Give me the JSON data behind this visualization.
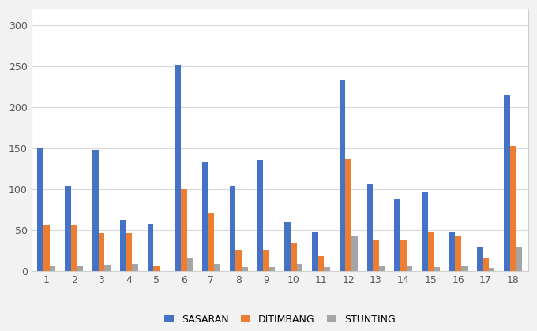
{
  "categories": [
    1,
    2,
    3,
    4,
    5,
    6,
    7,
    8,
    9,
    10,
    11,
    12,
    13,
    14,
    15,
    16,
    17,
    18
  ],
  "sasaran": [
    150,
    104,
    148,
    63,
    58,
    251,
    134,
    104,
    136,
    60,
    48,
    233,
    106,
    88,
    96,
    48,
    30,
    215
  ],
  "ditimbang": [
    57,
    57,
    46,
    46,
    6,
    100,
    71,
    26,
    26,
    35,
    19,
    137,
    38,
    38,
    47,
    44,
    16,
    153
  ],
  "stunting": [
    7,
    7,
    8,
    9,
    0,
    16,
    9,
    5,
    5,
    9,
    5,
    44,
    7,
    7,
    5,
    7,
    4,
    30
  ],
  "color_sasaran": "#4472c4",
  "color_ditimbang": "#ed7d31",
  "color_stunting": "#a5a5a5",
  "legend_labels": [
    "SASARAN",
    "DITIMBANG",
    "STUNTING"
  ],
  "ylim": [
    0,
    320
  ],
  "yticks": [
    0,
    50,
    100,
    150,
    200,
    250,
    300
  ],
  "background_color": "#ffffff",
  "outer_bg": "#f2f2f2",
  "grid_color": "#d9d9d9",
  "border_color": "#d0d0d0",
  "bar_width": 0.22
}
